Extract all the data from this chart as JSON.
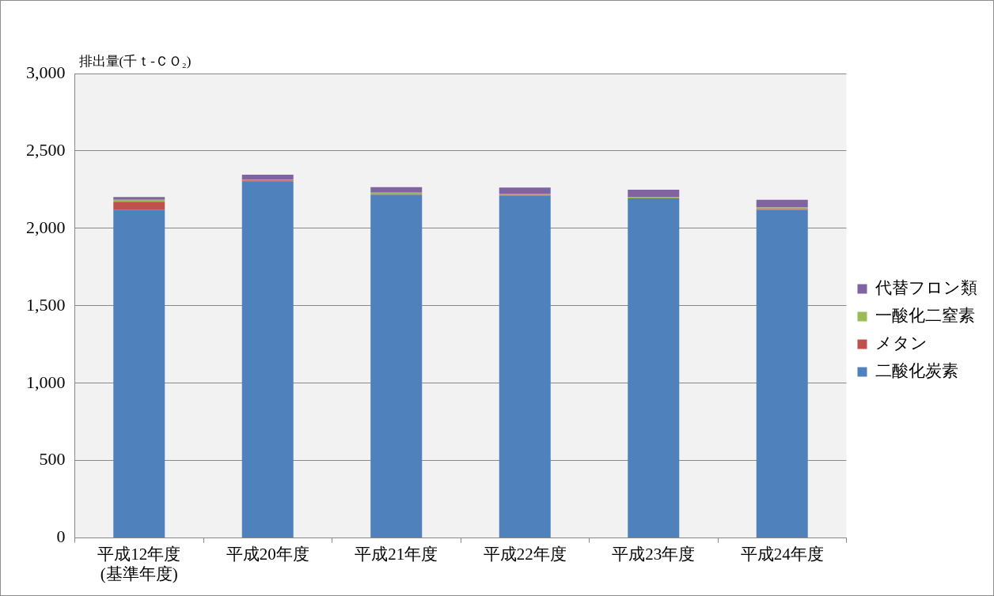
{
  "chart_data": {
    "type": "bar",
    "stacked": true,
    "ylabel": "排出量(千ｔ-ＣＯ₂)",
    "categories": [
      "平成12年度\n(基準年度)",
      "平成20年度",
      "平成21年度",
      "平成22年度",
      "平成23年度",
      "平成24年度"
    ],
    "series": [
      {
        "name": "二酸化炭素",
        "color": "#4f81bd",
        "values": [
          2120,
          2302,
          2216,
          2211,
          2188,
          2119
        ]
      },
      {
        "name": "メタン",
        "color": "#c0504d",
        "values": [
          52,
          7,
          5,
          5,
          5,
          6
        ]
      },
      {
        "name": "一酸化二窒素",
        "color": "#9bbb59",
        "values": [
          12,
          7,
          9,
          8,
          10,
          9
        ]
      },
      {
        "name": "代替フロン類",
        "color": "#8064a2",
        "values": [
          18,
          31,
          36,
          40,
          46,
          51
        ]
      }
    ],
    "ylim": [
      0,
      3000
    ],
    "yticks": [
      {
        "value": 0,
        "label": "0"
      },
      {
        "value": 500,
        "label": "500"
      },
      {
        "value": 1000,
        "label": "1,000"
      },
      {
        "value": 1500,
        "label": "1,500"
      },
      {
        "value": 2000,
        "label": "2,000"
      },
      {
        "value": 2500,
        "label": "2,500"
      },
      {
        "value": 3000,
        "label": "3,000"
      }
    ],
    "grid": "y",
    "legend": "right"
  }
}
